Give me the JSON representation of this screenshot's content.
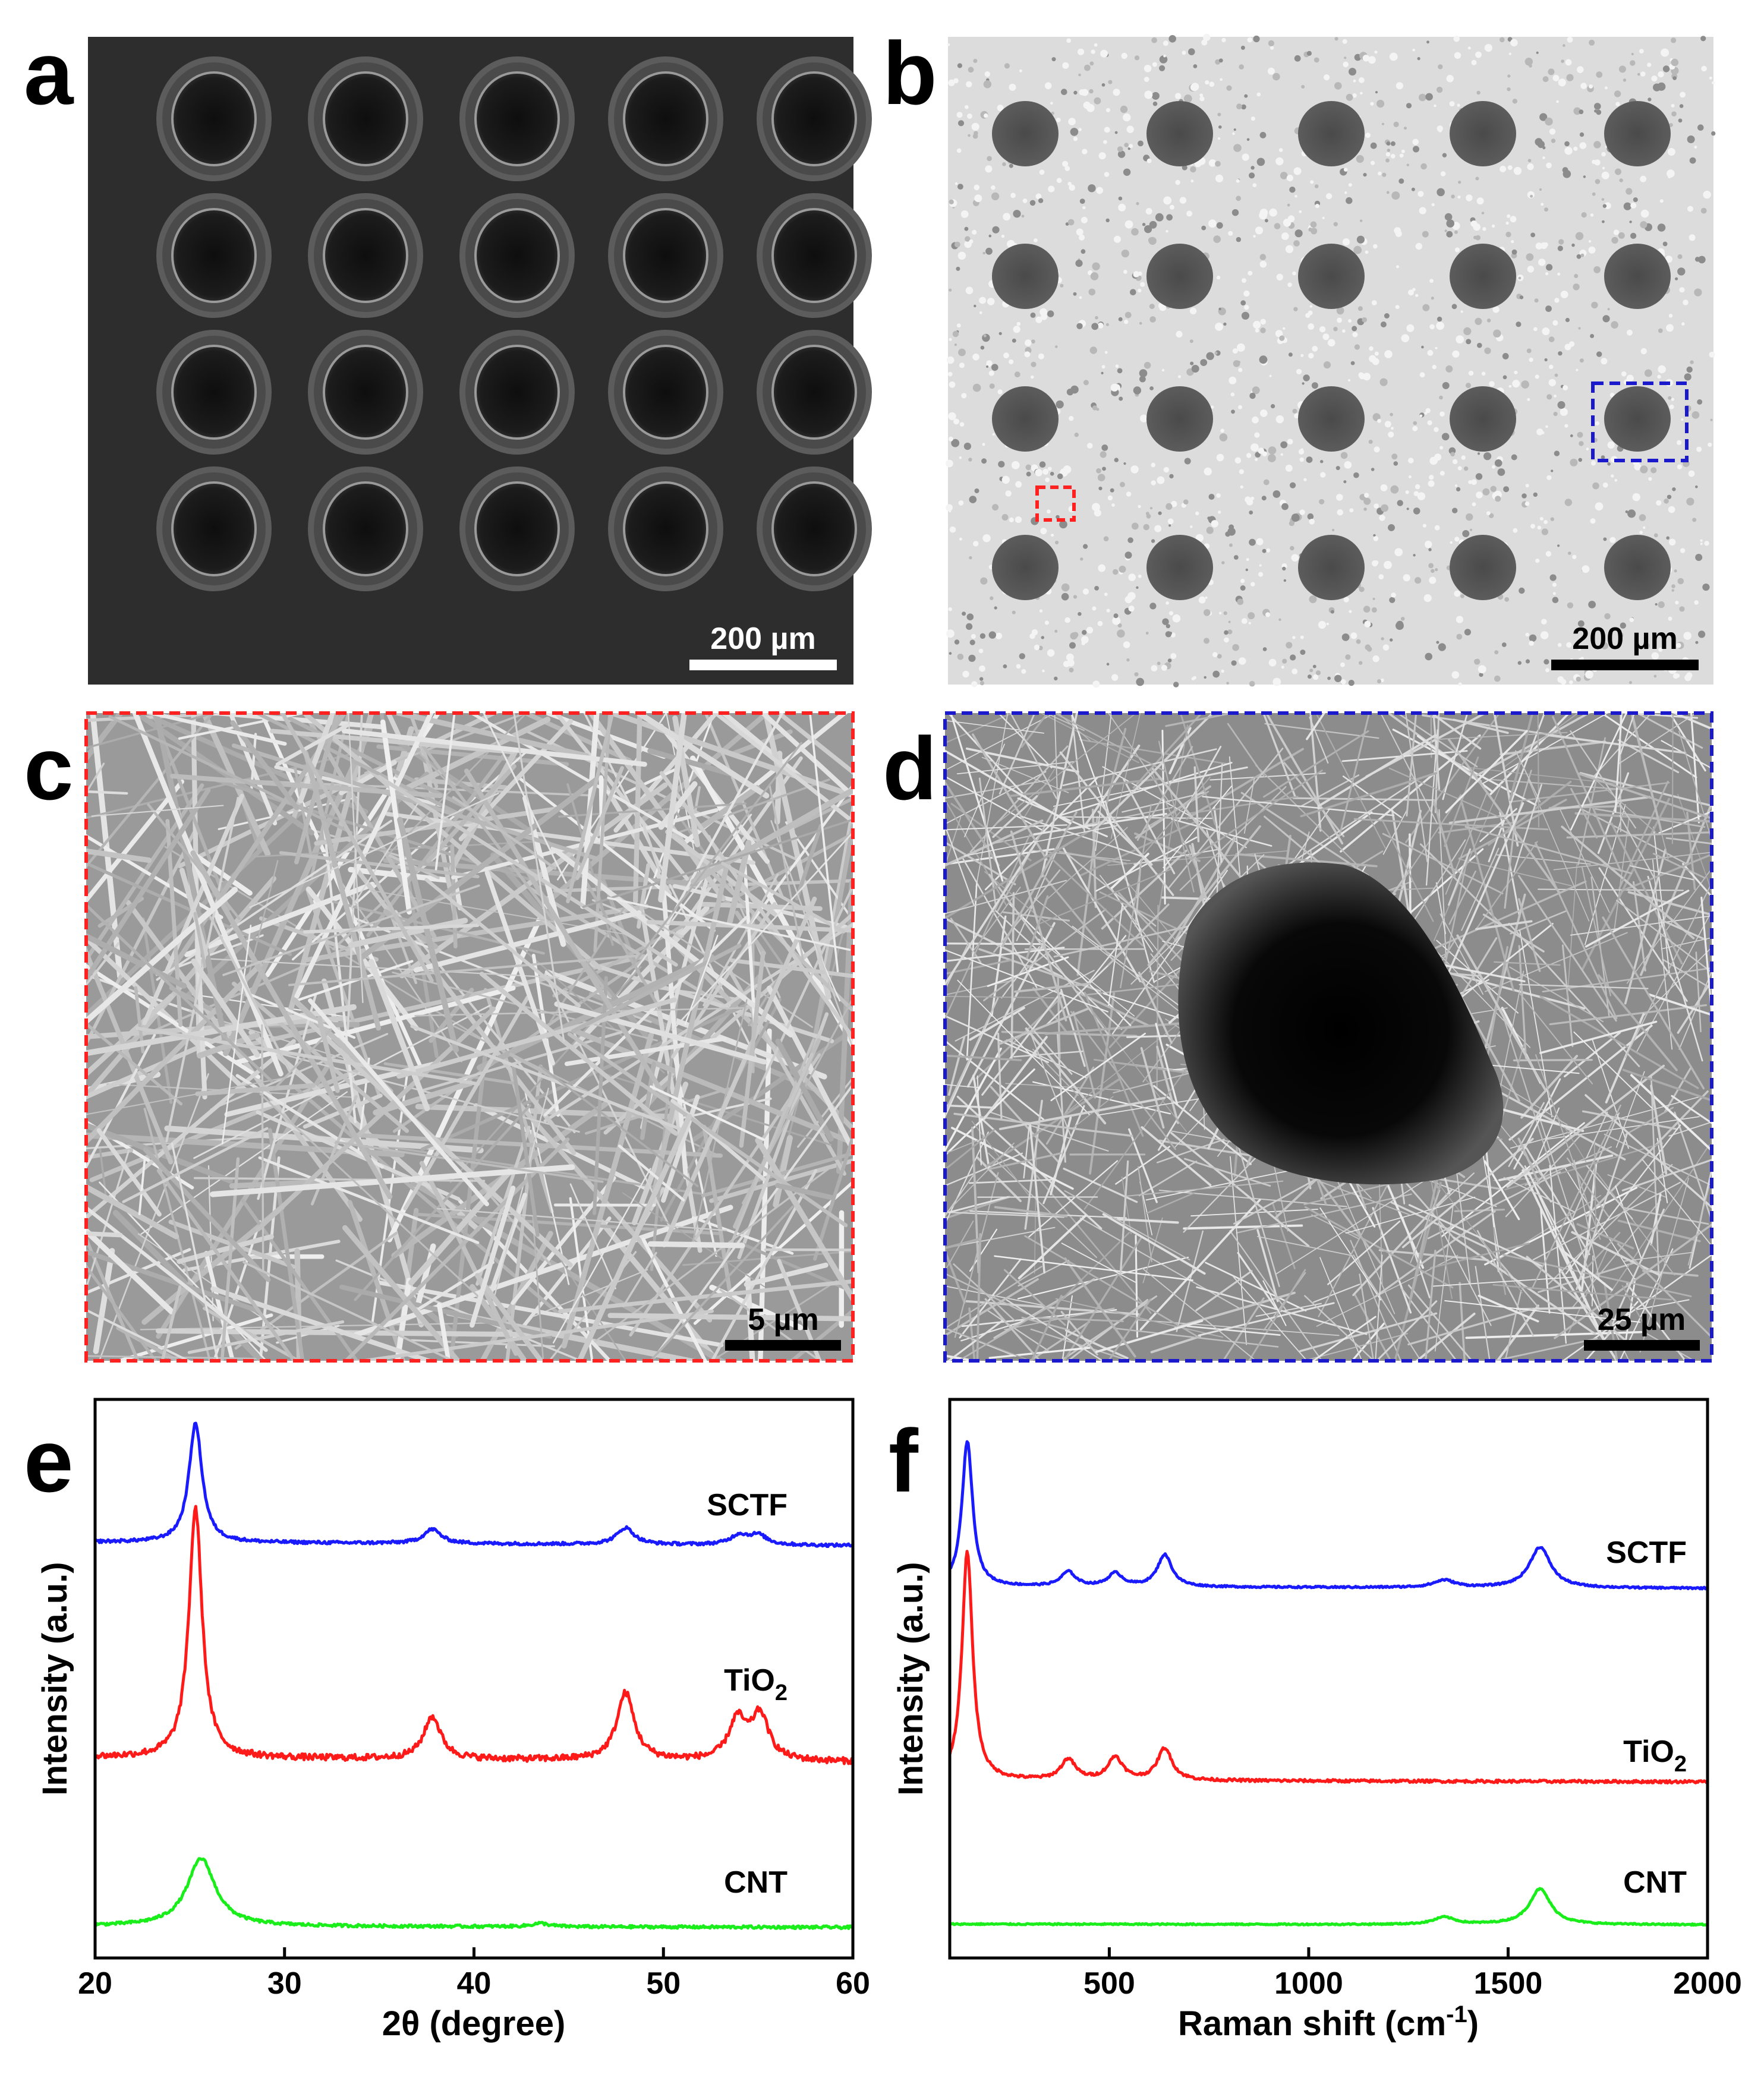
{
  "panels": {
    "a": {
      "letter": "a",
      "scale_bar": "200 µm"
    },
    "b": {
      "letter": "b",
      "scale_bar": "200 µm"
    },
    "c": {
      "letter": "c",
      "scale_bar": "5 µm"
    },
    "d": {
      "letter": "d",
      "scale_bar": "25 µm"
    },
    "e": {
      "letter": "e"
    },
    "f": {
      "letter": "f"
    }
  },
  "colors": {
    "sctf": "#1a1aff",
    "tio2": "#ff1a1a",
    "cnt": "#1aee1a",
    "red_box": "#ff2020",
    "blue_box": "#1a1acc"
  },
  "chart_data": [
    {
      "id": "e",
      "type": "line",
      "xlabel": "2θ (degree)",
      "ylabel": "Intensity (a.u.)",
      "xlim": [
        20,
        60
      ],
      "xticks": [
        20,
        30,
        40,
        50,
        60
      ],
      "series": [
        {
          "name": "SCTF",
          "color": "#1a1aff",
          "peaks": [
            [
              25.3,
              1.0
            ],
            [
              37.8,
              0.12
            ],
            [
              48.0,
              0.14
            ],
            [
              54.0,
              0.08
            ],
            [
              55.0,
              0.08
            ]
          ],
          "baseline": 0.05
        },
        {
          "name": "TiO2",
          "color": "#ff1a1a",
          "peaks": [
            [
              25.3,
              1.0
            ],
            [
              37.8,
              0.17
            ],
            [
              48.0,
              0.27
            ],
            [
              53.9,
              0.16
            ],
            [
              55.1,
              0.18
            ]
          ],
          "baseline": 0.03
        },
        {
          "name": "CNT",
          "color": "#1aee1a",
          "peaks": [
            [
              25.6,
              0.6
            ],
            [
              43.5,
              0.03
            ]
          ],
          "baseline": 0.02
        }
      ]
    },
    {
      "id": "f",
      "type": "line",
      "xlabel": "Raman shift (cm-1)",
      "ylabel": "Intensity (a.u.)",
      "xlim": [
        100,
        2000
      ],
      "xticks": [
        500,
        1000,
        1500,
        2000
      ],
      "series": [
        {
          "name": "SCTF",
          "color": "#1a1aff",
          "peaks": [
            [
              144,
              1.0
            ],
            [
              397,
              0.1
            ],
            [
              515,
              0.09
            ],
            [
              639,
              0.22
            ],
            [
              1340,
              0.05
            ],
            [
              1580,
              0.28
            ]
          ],
          "baseline": 0.02
        },
        {
          "name": "TiO2",
          "color": "#ff1a1a",
          "peaks": [
            [
              144,
              1.0
            ],
            [
              397,
              0.09
            ],
            [
              515,
              0.1
            ],
            [
              639,
              0.14
            ]
          ],
          "baseline": 0.01
        },
        {
          "name": "CNT",
          "color": "#1aee1a",
          "peaks": [
            [
              1340,
              0.06
            ],
            [
              1580,
              0.3
            ]
          ],
          "baseline": 0.01
        }
      ]
    }
  ]
}
